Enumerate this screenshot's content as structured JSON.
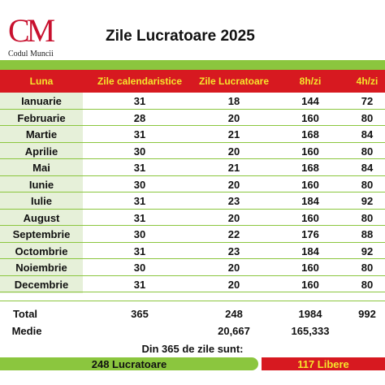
{
  "logo": {
    "mark": "CM",
    "subtitle": "Codul Muncii"
  },
  "title": "Zile Lucratoare 2025",
  "columns": [
    "Luna",
    "Zile calendaristice",
    "Zile Lucratoare",
    "8h/zi",
    "4h/zi"
  ],
  "months": [
    {
      "luna": "Ianuarie",
      "cal": "31",
      "lucr": "18",
      "h8": "144",
      "h4": "72"
    },
    {
      "luna": "Februarie",
      "cal": "28",
      "lucr": "20",
      "h8": "160",
      "h4": "80"
    },
    {
      "luna": "Martie",
      "cal": "31",
      "lucr": "21",
      "h8": "168",
      "h4": "84"
    },
    {
      "luna": "Aprilie",
      "cal": "30",
      "lucr": "20",
      "h8": "160",
      "h4": "80"
    },
    {
      "luna": "Mai",
      "cal": "31",
      "lucr": "21",
      "h8": "168",
      "h4": "84"
    },
    {
      "luna": "Iunie",
      "cal": "30",
      "lucr": "20",
      "h8": "160",
      "h4": "80"
    },
    {
      "luna": "Iulie",
      "cal": "31",
      "lucr": "23",
      "h8": "184",
      "h4": "92"
    },
    {
      "luna": "August",
      "cal": "31",
      "lucr": "20",
      "h8": "160",
      "h4": "80"
    },
    {
      "luna": "Septembrie",
      "cal": "30",
      "lucr": "22",
      "h8": "176",
      "h4": "88"
    },
    {
      "luna": "Octombrie",
      "cal": "31",
      "lucr": "23",
      "h8": "184",
      "h4": "92"
    },
    {
      "luna": "Noiembrie",
      "cal": "30",
      "lucr": "20",
      "h8": "160",
      "h4": "80"
    },
    {
      "luna": "Decembrie",
      "cal": "31",
      "lucr": "20",
      "h8": "160",
      "h4": "80"
    }
  ],
  "total": {
    "label": "Total",
    "cal": "365",
    "lucr": "248",
    "h8": "1984",
    "h4": "992"
  },
  "medie": {
    "label": "Medie",
    "lucr": "20,667",
    "h8": "165,333"
  },
  "summary": {
    "text": "Din 365 de zile sunt:",
    "lucratoare": "248 Lucratoare",
    "libere": "117 Libere"
  },
  "colors": {
    "green": "#8bc63e",
    "red": "#d71920",
    "yellow": "#f5e52c"
  }
}
